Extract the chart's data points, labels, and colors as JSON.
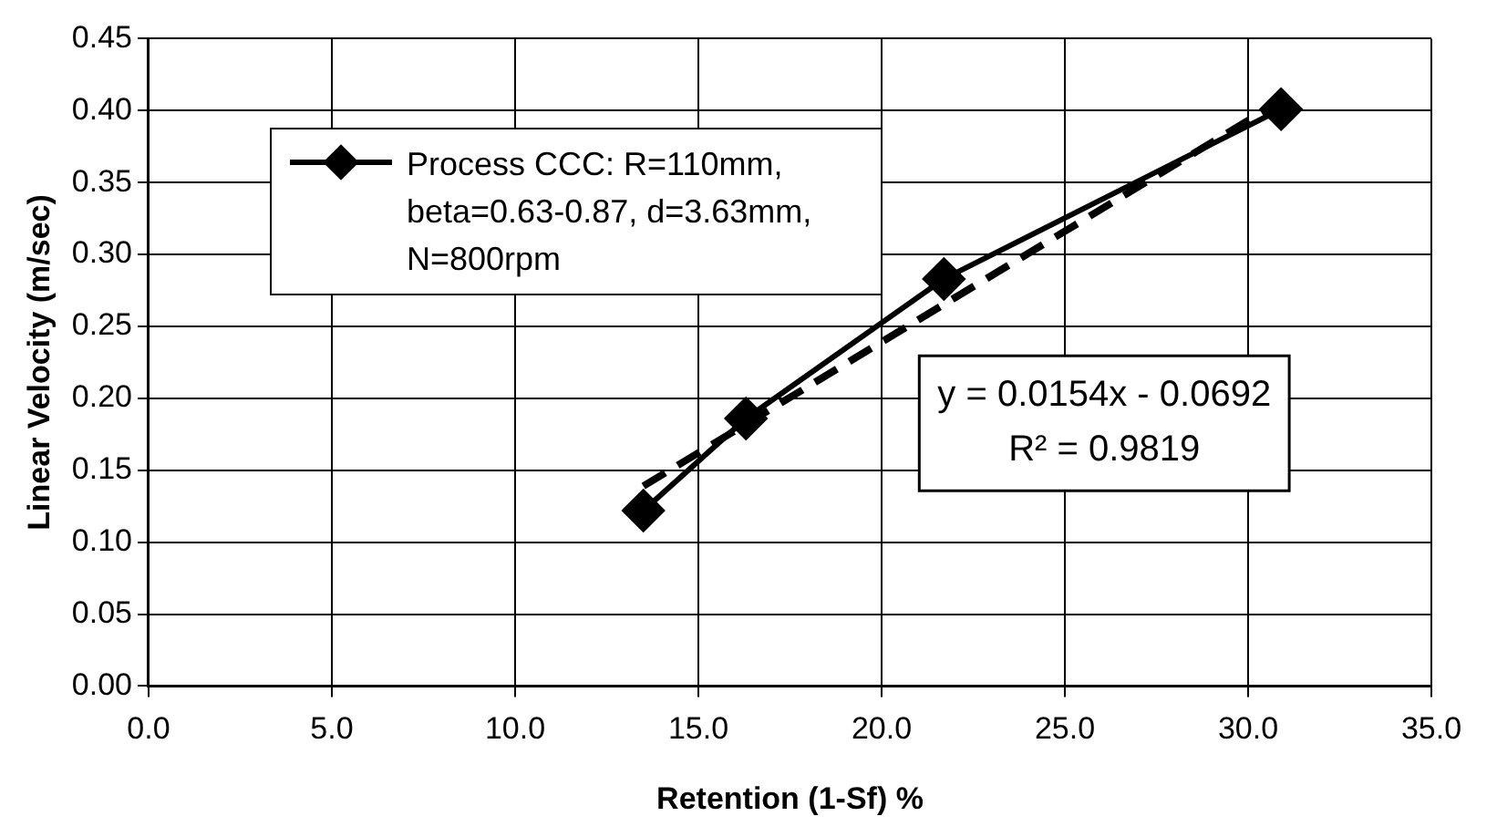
{
  "chart_data": {
    "type": "line",
    "xlabel": "Retention (1-Sf) %",
    "ylabel": "Linear Velocity (m/sec)",
    "x": [
      13.5,
      16.3,
      21.7,
      30.9
    ],
    "series": [
      {
        "name": "Process CCC: R=110mm, beta=0.63-0.87, d=3.63mm, N=800rpm",
        "color": "#000000",
        "values": [
          0.122,
          0.186,
          0.283,
          0.401
        ],
        "marker": "diamond",
        "line_style": "solid"
      },
      {
        "type": "line",
        "color": "#000000",
        "x": [
          13.5,
          30.9
        ],
        "values": [
          0.139,
          0.407
        ],
        "marker": "none",
        "line_style": "dashed"
      }
    ],
    "xlim": [
      0,
      35
    ],
    "xticks": [
      {
        "value": 0,
        "label": "0.0"
      },
      {
        "value": 5,
        "label": "5.0"
      },
      {
        "value": 10,
        "label": "10.0"
      },
      {
        "value": 15,
        "label": "15.0"
      },
      {
        "value": 20,
        "label": "20.0"
      },
      {
        "value": 25,
        "label": "25.0"
      },
      {
        "value": 30,
        "label": "30.0"
      },
      {
        "value": 35,
        "label": "35.0"
      }
    ],
    "ylim": [
      0,
      0.45
    ],
    "yticks": [
      {
        "value": 0,
        "label": "0.00"
      },
      {
        "value": 0.05,
        "label": "0.05"
      },
      {
        "value": 0.1,
        "label": "0.10"
      },
      {
        "value": 0.15,
        "label": "0.15"
      },
      {
        "value": 0.2,
        "label": "0.20"
      },
      {
        "value": 0.25,
        "label": "0.25"
      },
      {
        "value": 0.3,
        "label": "0.30"
      },
      {
        "value": 0.35,
        "label": "0.35"
      },
      {
        "value": 0.4,
        "label": "0.40"
      },
      {
        "value": 0.45,
        "label": "0.45"
      }
    ],
    "annotations": [
      "y = 0.0154x - 0.0692",
      "R² = 0.9819"
    ],
    "grid": true,
    "legend": "top left"
  }
}
